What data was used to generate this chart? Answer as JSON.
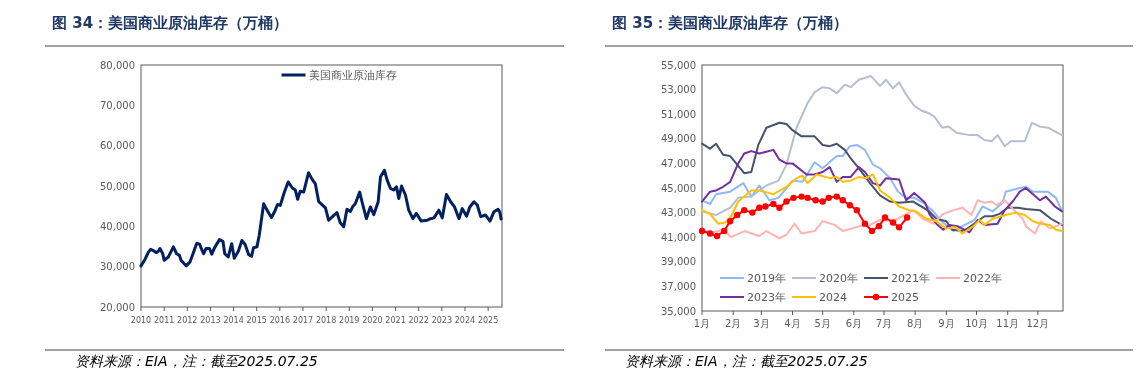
{
  "chart_data": [
    {
      "type": "line",
      "title": "图 34：美国商业原油库存（万桶）",
      "annotations": [
        "资料来源：EIA，注：截至2025.07.25"
      ],
      "legend": "top",
      "xlim": [
        2010,
        2025.6
      ],
      "xticks": [
        2010,
        2011,
        2012,
        2013,
        2014,
        2015,
        2016,
        2017,
        2018,
        2019,
        2020,
        2021,
        2022,
        2023,
        2024,
        2025
      ],
      "ylim": [
        20000,
        80000
      ],
      "yticks": [
        {
          "value": 20000,
          "label": "20,000"
        },
        {
          "value": 30000,
          "label": "30,000"
        },
        {
          "value": 40000,
          "label": "40,000"
        },
        {
          "value": 50000,
          "label": "50,000"
        },
        {
          "value": 60000,
          "label": "60,000"
        },
        {
          "value": 70000,
          "label": "70,000"
        },
        {
          "value": 80000,
          "label": "80,000"
        }
      ],
      "series": [
        {
          "name": "美国商业原油库存",
          "color": "#002060",
          "x": [
            2010.0,
            2010.17,
            2010.32,
            2010.42,
            2010.53,
            2010.65,
            2010.75,
            2010.82,
            2010.94,
            2011.0,
            2011.18,
            2011.4,
            2011.54,
            2011.66,
            2011.73,
            2011.95,
            2012.12,
            2012.27,
            2012.41,
            2012.53,
            2012.7,
            2012.81,
            2012.96,
            2013.06,
            2013.17,
            2013.39,
            2013.54,
            2013.62,
            2013.77,
            2013.92,
            2014.03,
            2014.21,
            2014.36,
            2014.5,
            2014.65,
            2014.78,
            2014.86,
            2015.01,
            2015.11,
            2015.3,
            2015.41,
            2015.53,
            2015.64,
            2015.77,
            2015.9,
            2016.02,
            2016.19,
            2016.36,
            2016.54,
            2016.67,
            2016.77,
            2016.88,
            2017.03,
            2017.24,
            2017.39,
            2017.53,
            2017.68,
            2017.82,
            2017.97,
            2018.11,
            2018.33,
            2018.47,
            2018.61,
            2018.76,
            2018.9,
            2019.05,
            2019.16,
            2019.26,
            2019.45,
            2019.55,
            2019.74,
            2019.91,
            2020.06,
            2020.25,
            2020.35,
            2020.52,
            2020.64,
            2020.78,
            2020.92,
            2021.04,
            2021.14,
            2021.26,
            2021.43,
            2021.57,
            2021.75,
            2021.9,
            2022.11,
            2022.37,
            2022.51,
            2022.66,
            2022.87,
            2023.02,
            2023.2,
            2023.38,
            2023.55,
            2023.74,
            2023.88,
            2024.07,
            2024.21,
            2024.39,
            2024.53,
            2024.68,
            2024.89,
            2025.08,
            2025.25,
            2025.43,
            2025.5,
            2025.56
          ],
          "values": [
            30200,
            31800,
            33600,
            34300,
            34000,
            33500,
            33800,
            34500,
            33200,
            31600,
            32400,
            34900,
            33200,
            32800,
            31600,
            30200,
            31200,
            33600,
            35800,
            35600,
            33200,
            34500,
            34500,
            33100,
            34600,
            36700,
            36300,
            33200,
            32400,
            35700,
            32100,
            33900,
            36500,
            35500,
            33000,
            32600,
            34700,
            34900,
            37800,
            45600,
            44400,
            43200,
            42200,
            43600,
            45400,
            45200,
            48400,
            51000,
            49500,
            49000,
            46700,
            48700,
            48500,
            53300,
            51700,
            50600,
            46100,
            45400,
            44600,
            41500,
            42700,
            43400,
            40900,
            39900,
            44200,
            43700,
            45000,
            45600,
            48500,
            46100,
            41900,
            44800,
            42900,
            46100,
            52300,
            53900,
            51400,
            49400,
            49000,
            49800,
            46900,
            50000,
            47700,
            44000,
            41900,
            43200,
            41300,
            41500,
            41900,
            42100,
            44000,
            42100,
            47900,
            46100,
            44800,
            41900,
            44400,
            42500,
            44800,
            46100,
            45300,
            42400,
            42800,
            41300,
            43600,
            44200,
            43600,
            41800
          ]
        }
      ]
    },
    {
      "type": "line",
      "title": "图 35：美国商业原油库存（万桶）",
      "annotations": [
        "资料来源：EIA，注：截至2025.07.25"
      ],
      "legend": "bottom left",
      "xlim": [
        "--01-01",
        "--12-26"
      ],
      "xticks": [
        {
          "value": "--01-01",
          "label": "1月"
        },
        {
          "value": "--02-01",
          "label": "2月"
        },
        {
          "value": "--03-01",
          "label": "3月"
        },
        {
          "value": "--04-01",
          "label": "4月"
        },
        {
          "value": "--05-01",
          "label": "5月"
        },
        {
          "value": "--06-01",
          "label": "6月"
        },
        {
          "value": "--07-01",
          "label": "7月"
        },
        {
          "value": "--08-01",
          "label": "8月"
        },
        {
          "value": "--09-01",
          "label": "9月"
        },
        {
          "value": "--10-01",
          "label": "10月"
        },
        {
          "value": "--11-01",
          "label": "11月"
        },
        {
          "value": "--12-01",
          "label": "12月"
        }
      ],
      "ylim": [
        35000,
        55000
      ],
      "yticks": [
        {
          "value": 35000,
          "label": "35,000"
        },
        {
          "value": 37000,
          "label": "37,000"
        },
        {
          "value": 39000,
          "label": "39,000"
        },
        {
          "value": 41000,
          "label": "41,000"
        },
        {
          "value": 43000,
          "label": "43,000"
        },
        {
          "value": 45000,
          "label": "45,000"
        },
        {
          "value": 47000,
          "label": "47,000"
        },
        {
          "value": 49000,
          "label": "49,000"
        },
        {
          "value": 51000,
          "label": "51,000"
        },
        {
          "value": 53000,
          "label": "53,000"
        },
        {
          "value": 55000,
          "label": "55,000"
        }
      ],
      "series": [
        {
          "name": "2019年",
          "color": "#8fb8fa",
          "x": [
            "--01-01",
            "--01-09",
            "--01-15",
            "--01-29",
            "--02-11",
            "--02-19",
            "--02-27",
            "--03-09",
            "--03-18",
            "--04-01",
            "--04-11",
            "--04-23",
            "--05-01",
            "--05-15",
            "--05-21",
            "--05-28",
            "--06-04",
            "--06-12",
            "--06-20",
            "--06-27",
            "--07-07",
            "--07-15",
            "--07-23",
            "--07-31",
            "--08-09",
            "--08-19",
            "--08-27",
            "--09-08",
            "--09-17",
            "--09-29",
            "--10-07",
            "--10-17",
            "--10-27",
            "--10-30",
            "--11-13",
            "--11-19",
            "--11-26",
            "--12-11",
            "--12-19",
            "--12-25"
          ],
          "values": [
            44000,
            43700,
            44500,
            44700,
            45400,
            44300,
            45200,
            44000,
            44200,
            45600,
            45500,
            47100,
            46600,
            47600,
            47600,
            48400,
            48500,
            48100,
            46900,
            46600,
            45800,
            44700,
            44200,
            44200,
            43800,
            43100,
            42300,
            41500,
            41900,
            42400,
            43500,
            43100,
            43800,
            44700,
            45000,
            45100,
            44700,
            44700,
            44200,
            43100
          ]
        },
        {
          "name": "2020年",
          "color": "#b4bfd0",
          "x": [
            "--01-01",
            "--01-15",
            "--01-29",
            "--02-06",
            "--02-19",
            "--02-27",
            "--03-06",
            "--03-18",
            "--03-26",
            "--04-05",
            "--04-16",
            "--04-23",
            "--05-01",
            "--05-08",
            "--05-15",
            "--05-23",
            "--05-29",
            "--06-06",
            "--06-18",
            "--06-27",
            "--07-03",
            "--07-10",
            "--07-16",
            "--07-23",
            "--07-31",
            "--08-07",
            "--08-14",
            "--08-20",
            "--08-28",
            "--09-03",
            "--09-11",
            "--09-24",
            "--10-02",
            "--10-09",
            "--10-16",
            "--10-22",
            "--10-29",
            "--11-04",
            "--11-18",
            "--11-25",
            "--12-03",
            "--12-11",
            "--12-18",
            "--12-25"
          ],
          "values": [
            43100,
            42800,
            43400,
            44200,
            44300,
            44800,
            45200,
            45600,
            46900,
            49900,
            51900,
            52800,
            53200,
            53100,
            52700,
            53400,
            53200,
            53800,
            54100,
            53300,
            53800,
            53100,
            53600,
            52600,
            51700,
            51300,
            51100,
            50800,
            49900,
            50000,
            49500,
            49300,
            49300,
            48900,
            48800,
            49300,
            48400,
            48800,
            48800,
            50300,
            50000,
            49900,
            49600,
            49300
          ]
        },
        {
          "name": "2021年",
          "color": "#44546a",
          "x": [
            "--01-01",
            "--01-09",
            "--01-15",
            "--01-22",
            "--01-29",
            "--02-04",
            "--02-12",
            "--02-19",
            "--02-26",
            "--03-06",
            "--03-19",
            "--03-26",
            "--04-01",
            "--04-10",
            "--04-23",
            "--05-01",
            "--05-08",
            "--05-15",
            "--05-23",
            "--05-29",
            "--06-06",
            "--06-17",
            "--06-27",
            "--07-07",
            "--07-16",
            "--07-30",
            "--08-07",
            "--08-15",
            "--08-22",
            "--09-01",
            "--09-07",
            "--09-16",
            "--09-22",
            "--10-02",
            "--10-09",
            "--10-17",
            "--10-24",
            "--11-01",
            "--11-11",
            "--11-19",
            "--12-03",
            "--12-14",
            "--12-25"
          ],
          "values": [
            48600,
            48200,
            48600,
            47700,
            47600,
            47000,
            46200,
            46300,
            48500,
            49900,
            50300,
            50200,
            49700,
            49200,
            49200,
            48500,
            48400,
            48600,
            48100,
            47400,
            46600,
            45400,
            44400,
            43900,
            43800,
            43900,
            43500,
            43100,
            42500,
            42300,
            41600,
            41500,
            41700,
            42300,
            42700,
            42700,
            42900,
            43400,
            43400,
            43300,
            43200,
            42500,
            42000
          ]
        },
        {
          "name": "2022年",
          "color": "#ffb3b3",
          "x": [
            "--01-01",
            "--01-12",
            "--01-22",
            "--01-30",
            "--02-12",
            "--02-27",
            "--03-06",
            "--03-19",
            "--03-26",
            "--04-03",
            "--04-10",
            "--04-23",
            "--05-01",
            "--05-13",
            "--05-21",
            "--06-07",
            "--06-17",
            "--06-27",
            "--07-10",
            "--07-30",
            "--08-09",
            "--08-19",
            "--08-29",
            "--09-08",
            "--09-17",
            "--09-26",
            "--10-02",
            "--10-09",
            "--10-16",
            "--10-21",
            "--10-29",
            "--11-06",
            "--11-16",
            "--11-19",
            "--11-28",
            "--12-04",
            "--12-13",
            "--12-25"
          ],
          "values": [
            41500,
            41400,
            41600,
            41000,
            41500,
            41100,
            41500,
            40900,
            41200,
            42100,
            41300,
            41500,
            42300,
            42000,
            41500,
            41900,
            42000,
            42400,
            42300,
            43200,
            42500,
            42100,
            42900,
            43200,
            43400,
            42800,
            44000,
            43800,
            43900,
            43600,
            44000,
            43300,
            42500,
            41900,
            41300,
            42300,
            41700,
            42100
          ]
        },
        {
          "name": "2023年",
          "color": "#7030a0",
          "x": [
            "--01-01",
            "--01-09",
            "--01-15",
            "--01-22",
            "--01-29",
            "--02-06",
            "--02-12",
            "--02-19",
            "--02-27",
            "--03-13",
            "--03-19",
            "--03-26",
            "--04-01",
            "--04-15",
            "--04-23",
            "--05-01",
            "--05-08",
            "--05-15",
            "--05-21",
            "--05-29",
            "--06-06",
            "--06-12",
            "--06-20",
            "--06-27",
            "--07-03",
            "--07-16",
            "--07-23",
            "--07-31",
            "--08-11",
            "--08-15",
            "--08-22",
            "--08-29",
            "--09-04",
            "--09-12",
            "--09-19",
            "--09-24",
            "--10-02",
            "--10-09",
            "--10-22",
            "--10-29",
            "--11-06",
            "--11-13",
            "--11-19",
            "--12-03",
            "--12-09",
            "--12-18",
            "--12-25"
          ],
          "values": [
            43900,
            44700,
            44800,
            45100,
            45500,
            47000,
            47800,
            48000,
            47800,
            48100,
            47300,
            47000,
            47000,
            46100,
            46100,
            46300,
            46700,
            45500,
            45900,
            45900,
            46700,
            46300,
            45400,
            45200,
            45800,
            45700,
            44000,
            44600,
            43800,
            42900,
            42100,
            41600,
            42000,
            41900,
            41600,
            41400,
            42400,
            42000,
            42100,
            43200,
            43900,
            44700,
            45000,
            44000,
            44300,
            43500,
            43100
          ]
        },
        {
          "name": "2024",
          "color": "#ffc000",
          "x": [
            "--01-01",
            "--01-09",
            "--01-17",
            "--01-24",
            "--01-30",
            "--02-06",
            "--02-19",
            "--02-27",
            "--03-13",
            "--03-26",
            "--04-05",
            "--04-11",
            "--04-16",
            "--04-25",
            "--05-08",
            "--05-15",
            "--05-21",
            "--05-29",
            "--06-06",
            "--06-13",
            "--06-20",
            "--06-27",
            "--07-07",
            "--07-16",
            "--07-26",
            "--08-02",
            "--08-12",
            "--08-22",
            "--09-01",
            "--09-10",
            "--09-17",
            "--09-28",
            "--10-04",
            "--10-09",
            "--10-17",
            "--10-30",
            "--11-09",
            "--11-18",
            "--11-26",
            "--12-04",
            "--12-13",
            "--12-19",
            "--12-25"
          ],
          "values": [
            43200,
            42900,
            42100,
            42200,
            42700,
            43900,
            44800,
            44800,
            44500,
            45100,
            45800,
            46000,
            45400,
            46100,
            45800,
            45900,
            45500,
            45600,
            45900,
            45800,
            46100,
            44800,
            44200,
            43500,
            43200,
            43100,
            42500,
            42300,
            41700,
            41800,
            41300,
            41900,
            42400,
            42000,
            42500,
            42800,
            43000,
            42800,
            42300,
            42100,
            42000,
            41600,
            41500
          ]
        },
        {
          "name": "2025",
          "color": "#ff0000",
          "marker": "circle",
          "x": [
            "--01-01",
            "--01-09",
            "--01-16",
            "--01-23",
            "--01-29",
            "--02-05",
            "--02-12",
            "--02-20",
            "--02-27",
            "--03-05",
            "--03-13",
            "--03-19",
            "--03-26",
            "--04-02",
            "--04-10",
            "--04-16",
            "--04-24",
            "--05-01",
            "--05-07",
            "--05-15",
            "--05-21",
            "--05-28",
            "--06-04",
            "--06-12",
            "--06-19",
            "--06-26",
            "--07-02",
            "--07-10",
            "--07-16",
            "--07-24"
          ],
          "values": [
            41500,
            41300,
            41100,
            41500,
            42300,
            42800,
            43200,
            43000,
            43400,
            43500,
            43700,
            43400,
            43900,
            44200,
            44300,
            44200,
            44000,
            43900,
            44200,
            44300,
            44000,
            43600,
            43200,
            42100,
            41500,
            41900,
            42600,
            42200,
            41800,
            42600
          ]
        }
      ]
    }
  ]
}
